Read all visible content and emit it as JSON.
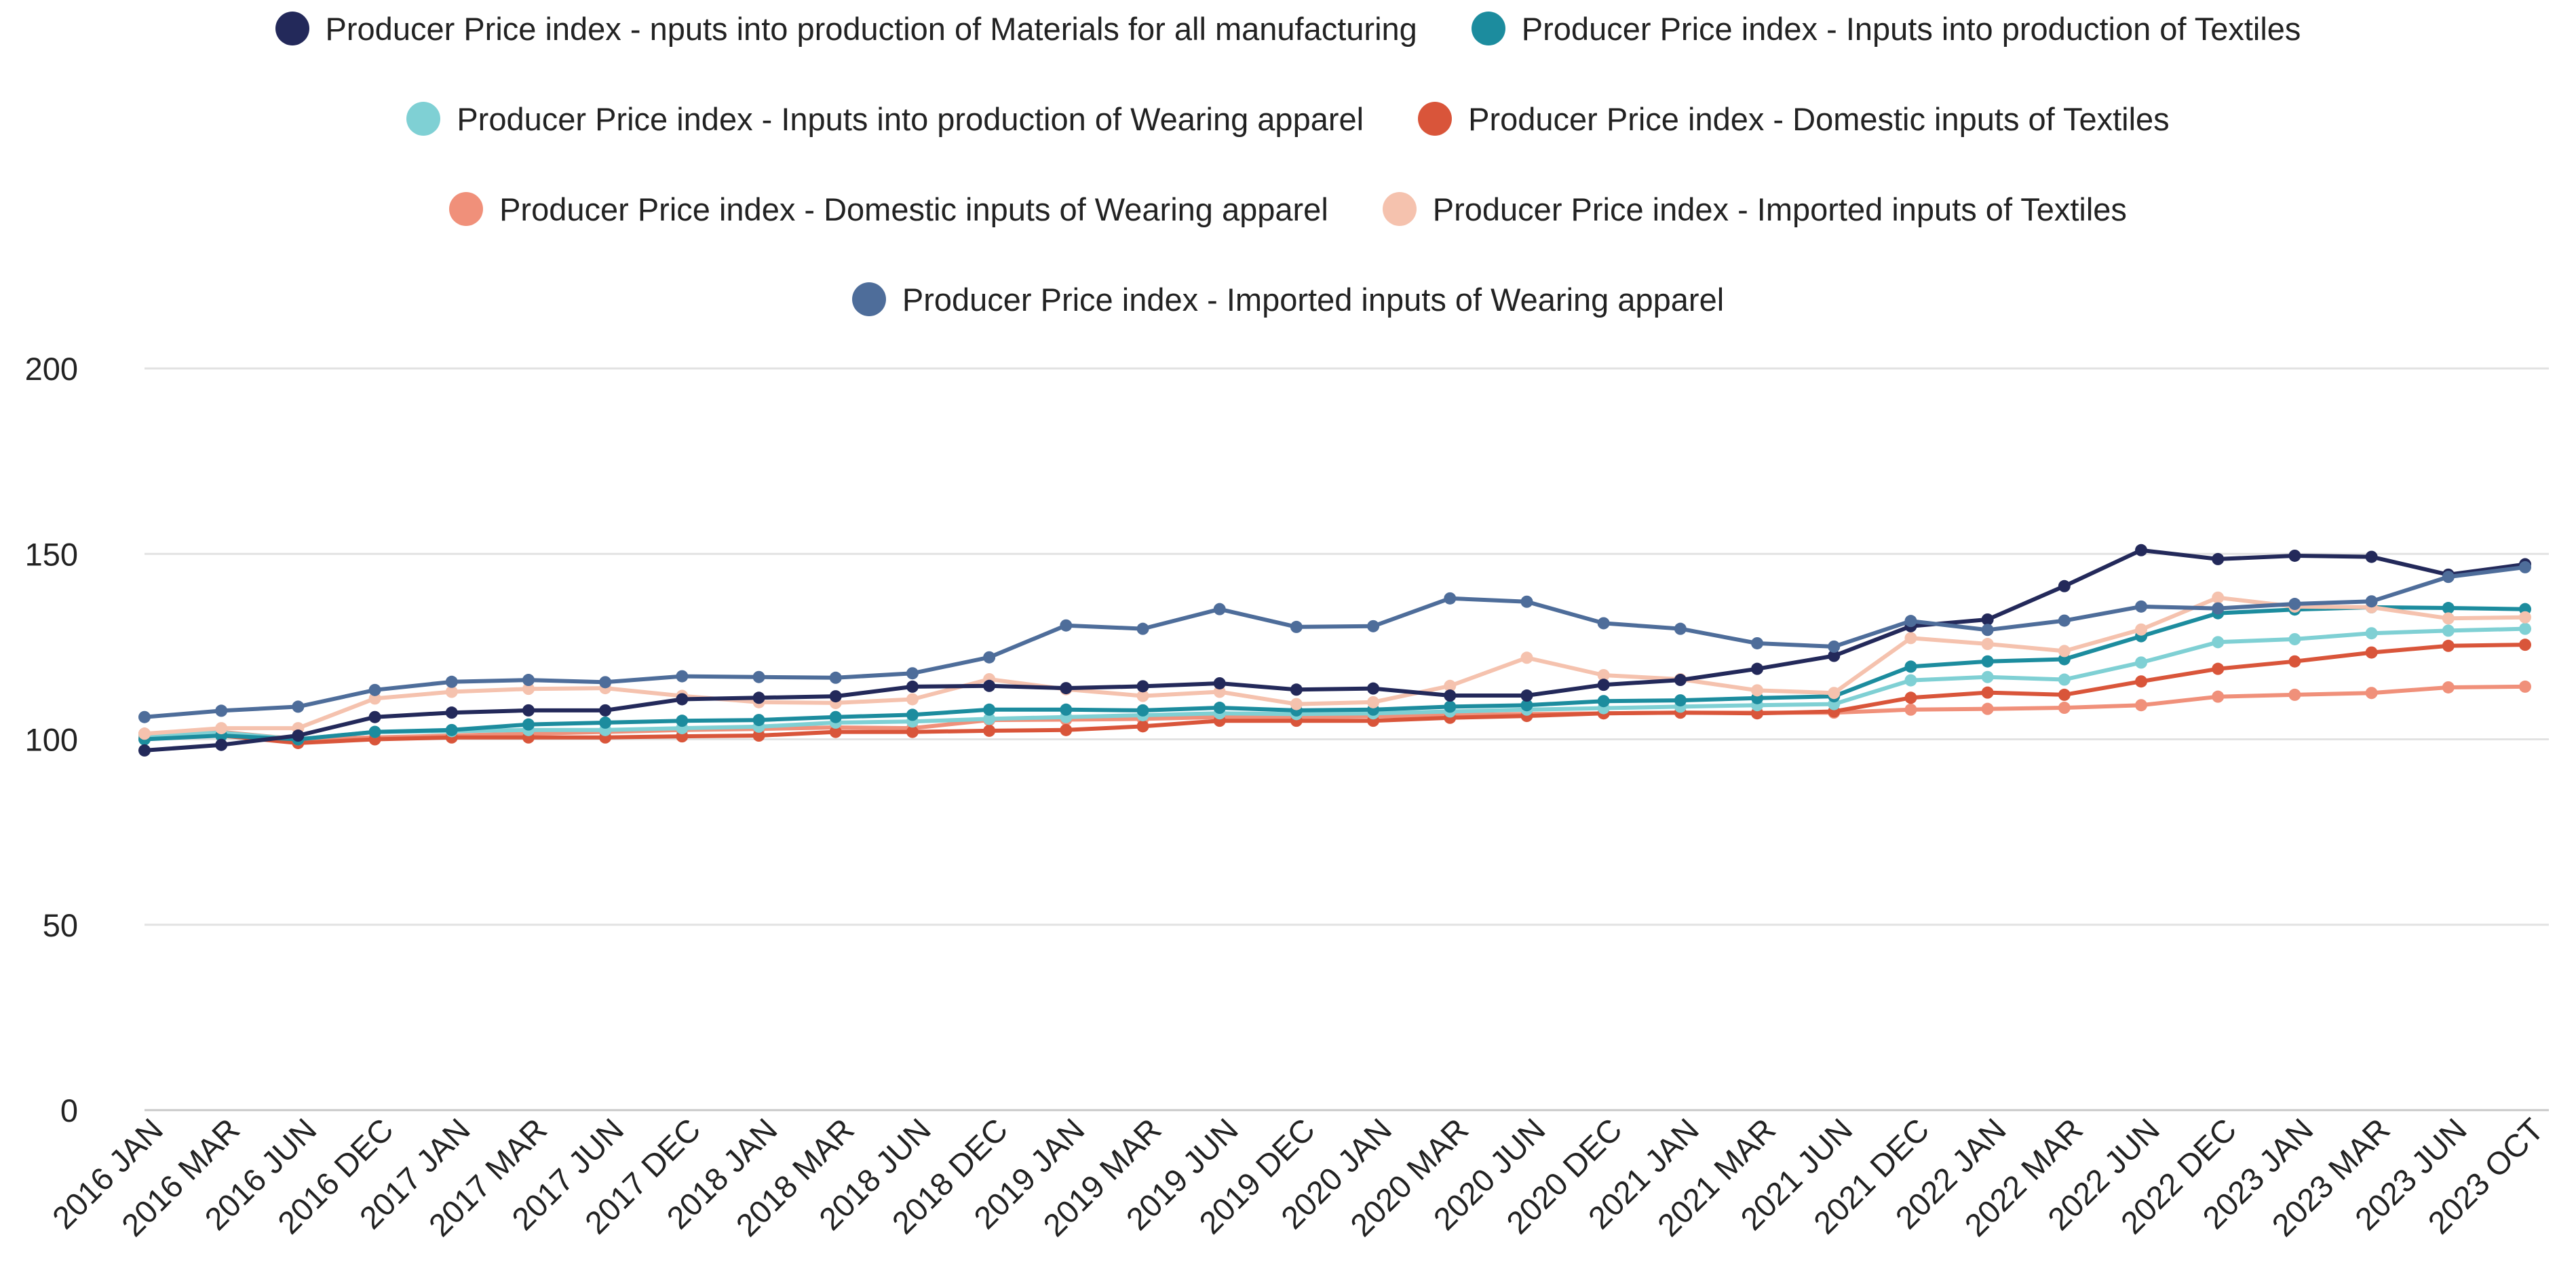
{
  "chart_data": {
    "type": "line",
    "title": "",
    "xlabel": "",
    "ylabel": "",
    "ylim": [
      0,
      200
    ],
    "yticks": [
      0,
      50,
      100,
      150,
      200
    ],
    "grid": true,
    "legend_position": "top",
    "categories": [
      "2016 JAN",
      "2016 MAR",
      "2016 JUN",
      "2016 DEC",
      "2017 JAN",
      "2017 MAR",
      "2017 JUN",
      "2017 DEC",
      "2018 JAN",
      "2018 MAR",
      "2018 JUN",
      "2018 DEC",
      "2019 JAN",
      "2019 MAR",
      "2019 JUN",
      "2019 DEC",
      "2020 JAN",
      "2020 MAR",
      "2020 JUN",
      "2020 DEC",
      "2021 JAN",
      "2021 MAR",
      "2021 JUN",
      "2021 DEC",
      "2022 JAN",
      "2022 MAR",
      "2022 JUN",
      "2022 DEC",
      "2023 JAN",
      "2023 MAR",
      "2023 JUN",
      "2023 OCT"
    ],
    "series": [
      {
        "name": "Producer Price index - nputs into production of Materials for all manufacturing",
        "color": "#23295a",
        "values": [
          97,
          98.5,
          101,
          106,
          107.2,
          107.8,
          107.8,
          110.8,
          111.2,
          111.6,
          114.2,
          114.4,
          113.8,
          114.3,
          115.1,
          113.4,
          113.7,
          111.8,
          111.8,
          114.7,
          116,
          119,
          122.5,
          130.5,
          132.3,
          141.3,
          151,
          148.6,
          149.5,
          149.2,
          144.4,
          147.2
        ]
      },
      {
        "name": "Producer Price index - Inputs into production of Textiles",
        "color": "#1c8c9e",
        "values": [
          100,
          101,
          100,
          102,
          102.5,
          104,
          104.5,
          105,
          105.2,
          106,
          106.6,
          108,
          108,
          107.8,
          108.5,
          107.8,
          108,
          108.8,
          109.2,
          110.3,
          110.5,
          111.1,
          111.6,
          119.6,
          121,
          121.6,
          127.8,
          134,
          135,
          135.6,
          135.4,
          135.1
        ]
      },
      {
        "name": "Producer Price index - Inputs into production of Wearing apparel",
        "color": "#7fd0d4",
        "values": [
          101,
          101.8,
          100,
          102,
          102.2,
          102.5,
          102.5,
          103,
          103.4,
          104.5,
          104.8,
          105.5,
          106,
          106.5,
          107,
          106.8,
          107,
          107.5,
          108,
          108.4,
          108.8,
          109.2,
          109.5,
          115.9,
          116.8,
          116.1,
          120.7,
          126.2,
          127,
          128.6,
          129.3,
          129.8
        ]
      },
      {
        "name": "Producer Price index - Domestic inputs of Textiles",
        "color": "#d9553a",
        "values": [
          101.5,
          101,
          99,
          100,
          100.5,
          100.5,
          100.5,
          100.8,
          101,
          102,
          102,
          102.3,
          102.5,
          103.5,
          105,
          105,
          105,
          105.8,
          106.3,
          107,
          107.2,
          107,
          107.5,
          111.2,
          112.6,
          112,
          115.6,
          119,
          121,
          123.4,
          125.2,
          125.5
        ]
      },
      {
        "name": "Producer Price index - Domestic inputs of Wearing apparel",
        "color": "#f0907a",
        "values": [
          100.5,
          102,
          100,
          100.5,
          101,
          101.5,
          102,
          102.5,
          102.8,
          103.2,
          103,
          105.2,
          105.3,
          105.5,
          106,
          106,
          106.2,
          106.5,
          106.8,
          107,
          107.2,
          107.2,
          107.2,
          108,
          108.2,
          108.5,
          109.2,
          111.5,
          112,
          112.5,
          114,
          114.2
        ]
      },
      {
        "name": "Producer Price index - Imported inputs of Textiles",
        "color": "#f5c2ae",
        "values": [
          101.5,
          103,
          103,
          111,
          112.8,
          113.6,
          113.8,
          111.7,
          110,
          109.8,
          110.8,
          116.2,
          113.5,
          111.7,
          112.8,
          109.5,
          110,
          114.4,
          122,
          117.3,
          116.2,
          113.2,
          112.5,
          127.3,
          125.7,
          123.8,
          129.6,
          138.2,
          135.8,
          135.6,
          132.6,
          132.9
        ]
      },
      {
        "name": "Producer Price index - Imported inputs of Wearing apparel",
        "color": "#4e6d9a",
        "values": [
          106,
          107.7,
          108.8,
          113.3,
          115.5,
          116,
          115.4,
          117,
          116.8,
          116.6,
          117.8,
          122.1,
          130.7,
          129.8,
          135.1,
          130.3,
          130.5,
          138,
          137.1,
          131.3,
          129.8,
          125.9,
          125,
          131.9,
          129.5,
          132,
          135.8,
          135.3,
          136.5,
          137.2,
          143.8,
          146.4
        ]
      }
    ]
  }
}
